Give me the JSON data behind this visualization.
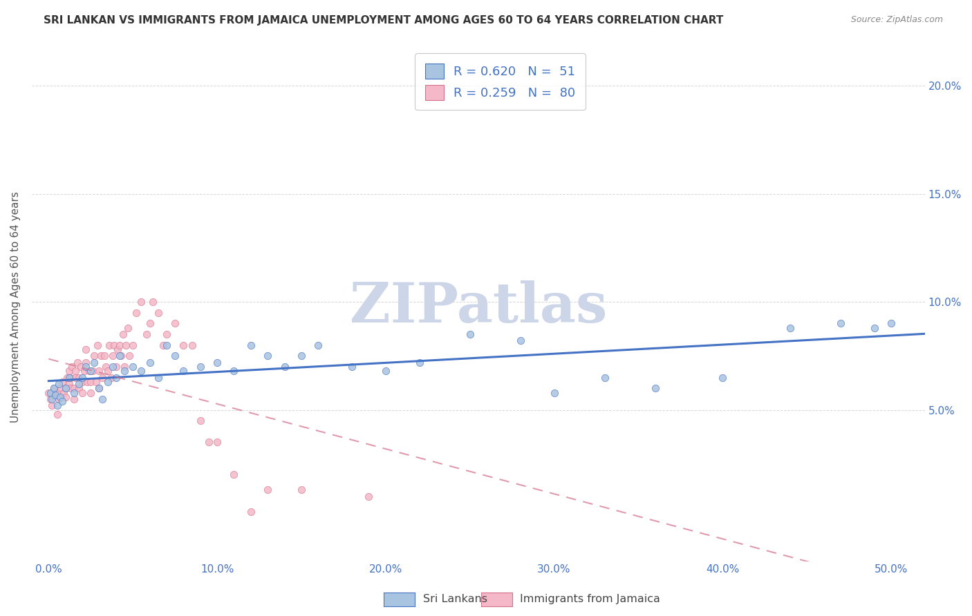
{
  "title": "SRI LANKAN VS IMMIGRANTS FROM JAMAICA UNEMPLOYMENT AMONG AGES 60 TO 64 YEARS CORRELATION CHART",
  "source": "Source: ZipAtlas.com",
  "ylabel": "Unemployment Among Ages 60 to 64 years",
  "xlabel_ticks": [
    "0.0%",
    "10.0%",
    "20.0%",
    "30.0%",
    "40.0%",
    "50.0%"
  ],
  "xlabel_vals": [
    0.0,
    0.1,
    0.2,
    0.3,
    0.4,
    0.5
  ],
  "ylabel_ticks": [
    "5.0%",
    "10.0%",
    "15.0%",
    "20.0%"
  ],
  "ylabel_vals": [
    0.05,
    0.1,
    0.15,
    0.2
  ],
  "xlim": [
    -0.01,
    0.52
  ],
  "ylim": [
    -0.02,
    0.215
  ],
  "watermark_text": "ZIPatlas",
  "legend_label1": "R = 0.620   N =  51",
  "legend_label2": "R = 0.259   N =  80",
  "legend_color1": "#a8c4e0",
  "legend_color2": "#f4b8c8",
  "line_color1": "#4472c4",
  "line_color2": "#d4708a",
  "scatter_edge1": "#4472c4",
  "scatter_edge2": "#d4708a",
  "sri_lankans_x": [
    0.001,
    0.002,
    0.003,
    0.004,
    0.005,
    0.006,
    0.007,
    0.008,
    0.01,
    0.012,
    0.015,
    0.018,
    0.02,
    0.022,
    0.025,
    0.027,
    0.03,
    0.032,
    0.035,
    0.038,
    0.04,
    0.042,
    0.045,
    0.05,
    0.055,
    0.06,
    0.065,
    0.07,
    0.075,
    0.08,
    0.09,
    0.1,
    0.11,
    0.12,
    0.13,
    0.14,
    0.15,
    0.16,
    0.18,
    0.2,
    0.22,
    0.25,
    0.28,
    0.3,
    0.33,
    0.36,
    0.4,
    0.44,
    0.47,
    0.49,
    0.5
  ],
  "sri_lankans_y": [
    0.058,
    0.055,
    0.06,
    0.057,
    0.052,
    0.062,
    0.056,
    0.054,
    0.06,
    0.065,
    0.058,
    0.062,
    0.065,
    0.07,
    0.068,
    0.072,
    0.06,
    0.055,
    0.063,
    0.07,
    0.065,
    0.075,
    0.068,
    0.07,
    0.068,
    0.072,
    0.065,
    0.08,
    0.075,
    0.068,
    0.07,
    0.072,
    0.068,
    0.08,
    0.075,
    0.07,
    0.075,
    0.08,
    0.07,
    0.068,
    0.072,
    0.085,
    0.082,
    0.058,
    0.065,
    0.06,
    0.065,
    0.088,
    0.09,
    0.088,
    0.09
  ],
  "jamaica_x": [
    0.0,
    0.001,
    0.002,
    0.003,
    0.004,
    0.005,
    0.005,
    0.006,
    0.007,
    0.008,
    0.009,
    0.01,
    0.01,
    0.011,
    0.012,
    0.012,
    0.013,
    0.013,
    0.014,
    0.015,
    0.015,
    0.016,
    0.016,
    0.017,
    0.018,
    0.018,
    0.019,
    0.02,
    0.02,
    0.021,
    0.022,
    0.022,
    0.023,
    0.024,
    0.025,
    0.025,
    0.026,
    0.027,
    0.028,
    0.029,
    0.03,
    0.03,
    0.031,
    0.032,
    0.033,
    0.034,
    0.035,
    0.036,
    0.037,
    0.038,
    0.039,
    0.04,
    0.041,
    0.042,
    0.043,
    0.044,
    0.045,
    0.046,
    0.047,
    0.048,
    0.05,
    0.052,
    0.055,
    0.058,
    0.06,
    0.062,
    0.065,
    0.068,
    0.07,
    0.075,
    0.08,
    0.085,
    0.09,
    0.095,
    0.1,
    0.11,
    0.12,
    0.13,
    0.15,
    0.19
  ],
  "jamaica_y": [
    0.058,
    0.055,
    0.052,
    0.06,
    0.057,
    0.048,
    0.058,
    0.055,
    0.06,
    0.063,
    0.058,
    0.056,
    0.06,
    0.065,
    0.062,
    0.068,
    0.06,
    0.065,
    0.07,
    0.055,
    0.06,
    0.065,
    0.068,
    0.072,
    0.06,
    0.065,
    0.07,
    0.058,
    0.063,
    0.068,
    0.072,
    0.078,
    0.063,
    0.068,
    0.058,
    0.063,
    0.068,
    0.075,
    0.063,
    0.08,
    0.06,
    0.068,
    0.075,
    0.065,
    0.075,
    0.07,
    0.068,
    0.08,
    0.065,
    0.075,
    0.08,
    0.07,
    0.078,
    0.08,
    0.075,
    0.085,
    0.07,
    0.08,
    0.088,
    0.075,
    0.08,
    0.095,
    0.1,
    0.085,
    0.09,
    0.1,
    0.095,
    0.08,
    0.085,
    0.09,
    0.08,
    0.08,
    0.045,
    0.035,
    0.035,
    0.02,
    0.003,
    0.013,
    0.013,
    0.01
  ],
  "background_color": "#ffffff",
  "grid_color": "#cccccc",
  "title_color": "#333333",
  "axis_label_color": "#555555",
  "tick_color": "#4472c4",
  "watermark_color": "#ccd6e8",
  "legend_fontsize": 13,
  "title_fontsize": 11,
  "axis_label_fontsize": 11,
  "marker_size": 55
}
